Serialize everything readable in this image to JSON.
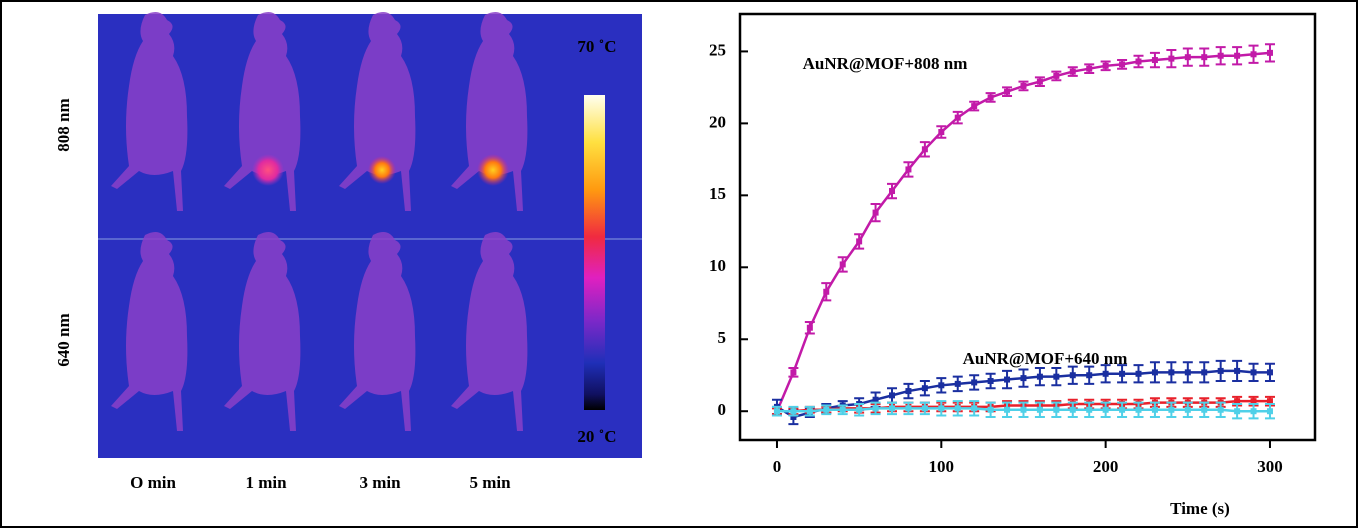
{
  "figure": {
    "row_labels": [
      "808 nm",
      "640 nm"
    ],
    "column_labels": [
      "O min",
      "1 min",
      "3 min",
      "5 min"
    ],
    "colorbar_labels": [
      "70 ˚C",
      "20 ˚C"
    ]
  },
  "chart_data": {
    "type": "line",
    "xlabel": "Time (s)",
    "annotations": [
      "AuNR@MOF+808 nm",
      "AuNR@MOF+640 nm"
    ],
    "x": [
      0,
      10,
      20,
      30,
      40,
      50,
      60,
      70,
      80,
      90,
      100,
      110,
      120,
      130,
      140,
      150,
      160,
      170,
      180,
      190,
      200,
      210,
      220,
      230,
      240,
      250,
      260,
      270,
      280,
      290,
      300
    ],
    "series": [
      {
        "color": "#c21aa8",
        "values": [
          0,
          2.7,
          5.8,
          8.3,
          10.2,
          11.8,
          13.8,
          15.3,
          16.8,
          18.2,
          19.4,
          20.4,
          21.2,
          21.8,
          22.2,
          22.6,
          22.9,
          23.3,
          23.6,
          23.8,
          24.0,
          24.1,
          24.3,
          24.4,
          24.5,
          24.6,
          24.6,
          24.7,
          24.7,
          24.8,
          24.9
        ],
        "errors": [
          0.3,
          0.3,
          0.4,
          0.6,
          0.5,
          0.5,
          0.6,
          0.5,
          0.5,
          0.5,
          0.4,
          0.4,
          0.3,
          0.3,
          0.3,
          0.3,
          0.3,
          0.3,
          0.3,
          0.3,
          0.3,
          0.3,
          0.4,
          0.5,
          0.6,
          0.6,
          0.6,
          0.6,
          0.6,
          0.6,
          0.6
        ]
      },
      {
        "color": "#1a2fa0",
        "values": [
          0.3,
          -0.4,
          -0.1,
          0.2,
          0.4,
          0.5,
          0.8,
          1.1,
          1.4,
          1.6,
          1.8,
          1.9,
          2.0,
          2.1,
          2.2,
          2.3,
          2.4,
          2.4,
          2.5,
          2.5,
          2.6,
          2.6,
          2.6,
          2.7,
          2.7,
          2.7,
          2.7,
          2.8,
          2.8,
          2.7,
          2.7
        ],
        "errors": [
          0.5,
          0.5,
          0.3,
          0.3,
          0.3,
          0.4,
          0.5,
          0.5,
          0.5,
          0.5,
          0.5,
          0.5,
          0.5,
          0.5,
          0.6,
          0.6,
          0.6,
          0.6,
          0.6,
          0.6,
          0.6,
          0.6,
          0.6,
          0.7,
          0.7,
          0.7,
          0.7,
          0.7,
          0.7,
          0.6,
          0.6
        ]
      },
      {
        "color": "#e8202a",
        "values": [
          0,
          0,
          0.1,
          0.1,
          0.2,
          0.2,
          0.2,
          0.3,
          0.3,
          0.3,
          0.3,
          0.3,
          0.3,
          0.3,
          0.4,
          0.4,
          0.4,
          0.4,
          0.5,
          0.5,
          0.5,
          0.5,
          0.5,
          0.6,
          0.6,
          0.6,
          0.6,
          0.6,
          0.7,
          0.7,
          0.7
        ],
        "errors": [
          0.2,
          0.2,
          0.2,
          0.2,
          0.2,
          0.3,
          0.3,
          0.3,
          0.3,
          0.3,
          0.3,
          0.3,
          0.3,
          0.3,
          0.3,
          0.3,
          0.3,
          0.3,
          0.3,
          0.3,
          0.3,
          0.3,
          0.3,
          0.3,
          0.3,
          0.3,
          0.3,
          0.3,
          0.3,
          0.3,
          0.3
        ]
      },
      {
        "color": "#4fd0e8",
        "values": [
          0,
          0,
          0,
          0.1,
          0.1,
          0.1,
          0.2,
          0.2,
          0.2,
          0.2,
          0.2,
          0.2,
          0.2,
          0.1,
          0.1,
          0.1,
          0.1,
          0.1,
          0.1,
          0.1,
          0.1,
          0.1,
          0.1,
          0.1,
          0.1,
          0.1,
          0.1,
          0.1,
          0.0,
          0.0,
          0.0
        ],
        "errors": [
          0.3,
          0.3,
          0.3,
          0.3,
          0.3,
          0.4,
          0.4,
          0.4,
          0.4,
          0.4,
          0.5,
          0.5,
          0.5,
          0.5,
          0.5,
          0.5,
          0.5,
          0.5,
          0.5,
          0.5,
          0.5,
          0.5,
          0.5,
          0.5,
          0.5,
          0.5,
          0.5,
          0.5,
          0.5,
          0.5,
          0.5
        ]
      }
    ],
    "xlim": [
      -22.5,
      327.4
    ],
    "ylim": [
      -2,
      27.6
    ],
    "xticks": [
      0,
      100,
      200,
      300
    ],
    "yticks": [
      0,
      5,
      10,
      15,
      20,
      25
    ]
  }
}
